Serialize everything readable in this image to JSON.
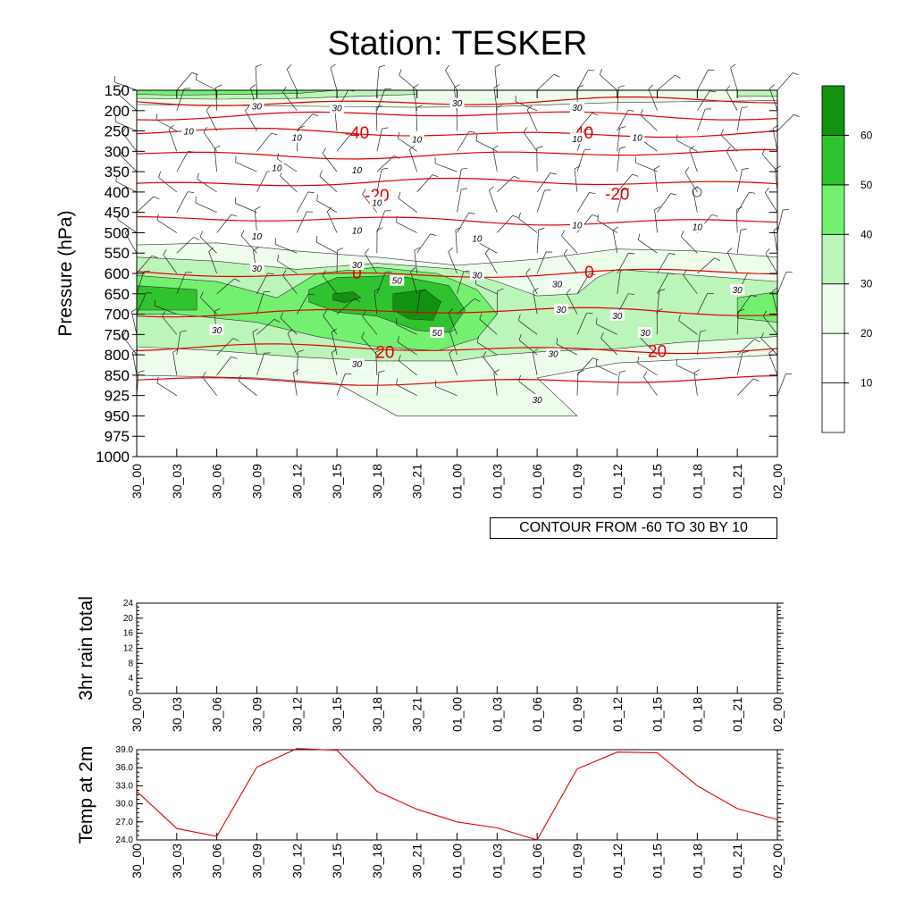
{
  "title": "Station: TESKER",
  "note": "CONTOUR FROM -60 TO 30 BY 10",
  "colorbar": {
    "levels": [
      10,
      20,
      30,
      40,
      50,
      60
    ],
    "colors": [
      "#ffffff",
      "#ffffff",
      "#eefcec",
      "#bbf5b9",
      "#73f070",
      "#30c330",
      "#119311"
    ]
  },
  "time_labels": [
    "30_00",
    "30_03",
    "30_06",
    "30_09",
    "30_12",
    "30_15",
    "30_18",
    "30_21",
    "01_00",
    "01_03",
    "01_06",
    "01_09",
    "01_12",
    "01_15",
    "01_18",
    "01_21",
    "02_00"
  ],
  "chart_data": [
    {
      "type": "contour",
      "ylabel": "Pressure (hPa)",
      "pressure_levels": [
        150,
        200,
        250,
        300,
        350,
        400,
        450,
        500,
        550,
        600,
        650,
        700,
        750,
        800,
        850,
        925,
        950,
        975,
        1000
      ],
      "temperature_contour_labels": [
        {
          "label": "-40",
          "time_index": 5.5,
          "pressure": 253
        },
        {
          "label": "-40",
          "time_index": 11.1,
          "pressure": 253
        },
        {
          "label": "-20",
          "time_index": 6.0,
          "pressure": 407
        },
        {
          "label": "-20",
          "time_index": 12.0,
          "pressure": 404
        },
        {
          "label": "0",
          "time_index": 5.5,
          "pressure": 598
        },
        {
          "label": "0",
          "time_index": 11.3,
          "pressure": 596
        },
        {
          "label": "20",
          "time_index": 6.2,
          "pressure": 792
        },
        {
          "label": "20",
          "time_index": 13.0,
          "pressure": 790
        }
      ],
      "humidity_contour_labels": [
        {
          "label": "30",
          "time_index": 3.0,
          "pressure": 188
        },
        {
          "label": "30",
          "time_index": 5.0,
          "pressure": 193
        },
        {
          "label": "30",
          "time_index": 8.0,
          "pressure": 181
        },
        {
          "label": "30",
          "time_index": 11.0,
          "pressure": 192
        },
        {
          "label": "10",
          "time_index": 1.3,
          "pressure": 250
        },
        {
          "label": "10",
          "time_index": 4.0,
          "pressure": 265
        },
        {
          "label": "10",
          "time_index": 7.0,
          "pressure": 270
        },
        {
          "label": "10",
          "time_index": 11.0,
          "pressure": 268
        },
        {
          "label": "10",
          "time_index": 12.5,
          "pressure": 265
        },
        {
          "label": "10",
          "time_index": 3.5,
          "pressure": 340
        },
        {
          "label": "10",
          "time_index": 5.5,
          "pressure": 345
        },
        {
          "label": "10",
          "time_index": 6.0,
          "pressure": 425
        },
        {
          "label": "10",
          "time_index": 3.0,
          "pressure": 508
        },
        {
          "label": "10",
          "time_index": 5.5,
          "pressure": 493
        },
        {
          "label": "10",
          "time_index": 8.5,
          "pressure": 513
        },
        {
          "label": "10",
          "time_index": 11.0,
          "pressure": 480
        },
        {
          "label": "10",
          "time_index": 14.0,
          "pressure": 485
        },
        {
          "label": "30",
          "time_index": 3.0,
          "pressure": 587
        },
        {
          "label": "30",
          "time_index": 5.5,
          "pressure": 578
        },
        {
          "label": "30",
          "time_index": 8.5,
          "pressure": 603
        },
        {
          "label": "30",
          "time_index": 10.5,
          "pressure": 625
        },
        {
          "label": "30",
          "time_index": 10.6,
          "pressure": 688
        },
        {
          "label": "30",
          "time_index": 12.0,
          "pressure": 703
        },
        {
          "label": "30",
          "time_index": 12.7,
          "pressure": 745
        },
        {
          "label": "30",
          "time_index": 10.4,
          "pressure": 797
        },
        {
          "label": "30",
          "time_index": 2.0,
          "pressure": 738
        },
        {
          "label": "30",
          "time_index": 5.5,
          "pressure": 822
        },
        {
          "label": "30",
          "time_index": 15.0,
          "pressure": 640
        },
        {
          "label": "30",
          "time_index": 10.0,
          "pressure": 930
        },
        {
          "label": "50",
          "time_index": 6.5,
          "pressure": 617
        },
        {
          "label": "50",
          "time_index": 7.5,
          "pressure": 745
        }
      ]
    },
    {
      "type": "line",
      "ylabel": "3hr rain total",
      "ylim": [
        0,
        24
      ],
      "yticks": [
        0,
        4,
        8,
        12,
        16,
        20,
        24
      ],
      "series": [
        {
          "values": [
            0,
            0,
            0,
            0,
            0,
            0,
            0,
            0,
            0,
            0,
            0,
            0,
            0,
            0,
            0,
            0,
            0
          ]
        }
      ]
    },
    {
      "type": "line",
      "ylabel": "Temp at 2m",
      "ylim": [
        24,
        39
      ],
      "yticks": [
        "24.0",
        "27.0",
        "30.0",
        "33.0",
        "36.0",
        "39.0"
      ],
      "series": [
        {
          "values": [
            32.1,
            25.9,
            24.6,
            36.1,
            39.2,
            38.9,
            32.1,
            29.1,
            27.0,
            26.0,
            24.0,
            35.8,
            38.6,
            38.5,
            33.0,
            29.2,
            27.4
          ]
        }
      ]
    }
  ]
}
